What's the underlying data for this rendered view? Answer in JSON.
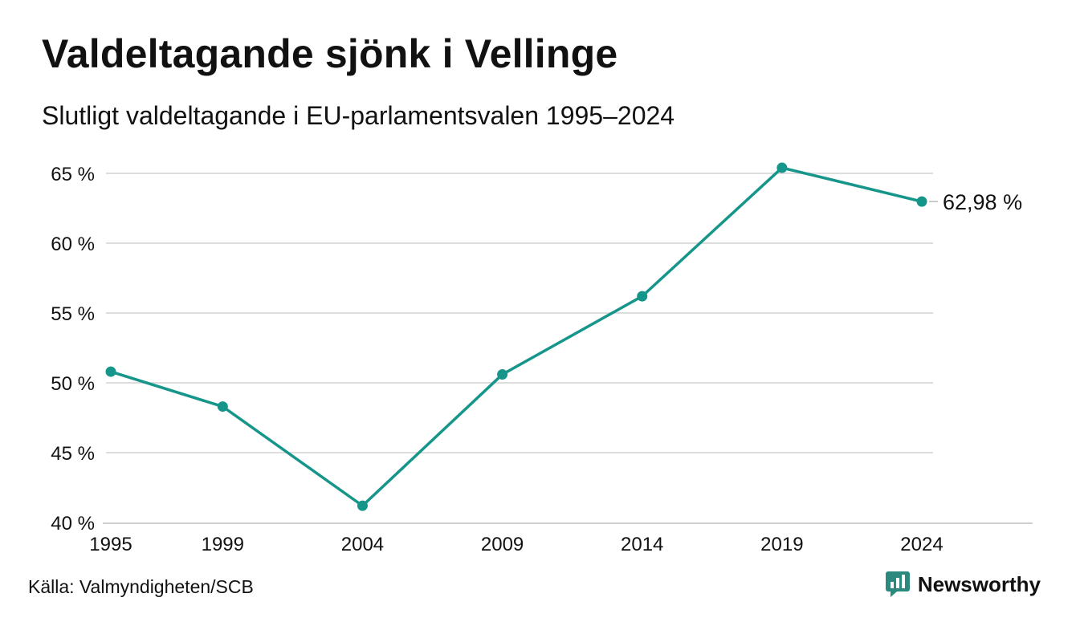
{
  "header": {
    "title": "Valdeltagande sjönk i Vellinge",
    "subtitle": "Slutligt valdeltagande i EU-parlamentsvalen 1995–2024"
  },
  "footer": {
    "source": "Källa: Valmyndigheten/SCB",
    "brand": "Newsworthy"
  },
  "colors": {
    "line": "#16968a",
    "grid": "#dddddd",
    "text": "#111111",
    "brand": "#2b8a7d"
  },
  "chart_data": {
    "type": "line",
    "title": "Valdeltagande sjönk i Vellinge",
    "subtitle": "Slutligt valdeltagande i EU-parlamentsvalen 1995–2024",
    "xlabel": "",
    "ylabel": "",
    "x": [
      1995,
      1999,
      2004,
      2009,
      2014,
      2019,
      2024
    ],
    "x_ticks": [
      "1995",
      "1999",
      "2004",
      "2009",
      "2014",
      "2019",
      "2024"
    ],
    "ylim": [
      40,
      65
    ],
    "y_ticks": [
      "40 %",
      "45 %",
      "50 %",
      "55 %",
      "60 %",
      "65 %"
    ],
    "series": [
      {
        "values": [
          50.8,
          48.3,
          41.2,
          50.6,
          56.2,
          65.4,
          62.98
        ]
      }
    ],
    "end_label": "62,98 %",
    "grid": true,
    "legend": "none"
  }
}
